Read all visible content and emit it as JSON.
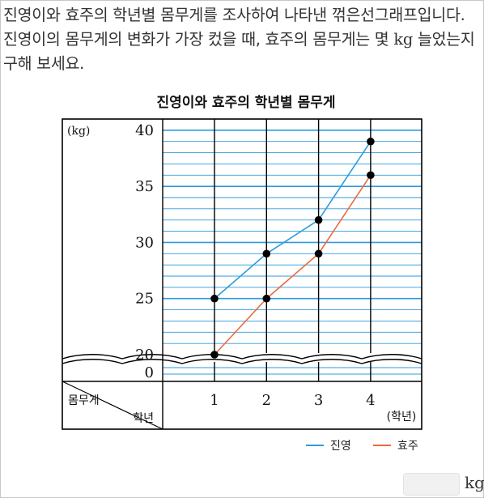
{
  "question": {
    "text_before": "진영이와 효주의 학년별 몸무게를 조사하여 나타낸 꺾은선그래프입니다. 진영이의 몸무게의 변화가 가장 컸을 때, 효주의 몸무게는 몇 ",
    "unit": "kg",
    "text_after": " 늘었는지 구해 보세요."
  },
  "answer": {
    "unit": "kg"
  },
  "chart_data": {
    "type": "line",
    "title": "진영이와 효주의 학년별 몸무게",
    "ylabel": "(kg)",
    "xlabel": "(학년)",
    "x": [
      1,
      2,
      3,
      4
    ],
    "x_tick_labels": [
      "1",
      "2",
      "3",
      "4"
    ],
    "y_ticks": [
      20,
      25,
      30,
      35,
      40
    ],
    "y_zero_label": "0",
    "ylim": [
      20,
      41
    ],
    "y_axis_break": true,
    "grid": true,
    "legend_position": "bottom-right",
    "header_cell": {
      "top": "몸무게",
      "bottom": "학년"
    },
    "series": [
      {
        "name": "진영",
        "values": [
          25,
          29,
          32,
          39
        ],
        "color": "#2e9bdc"
      },
      {
        "name": "효주",
        "values": [
          20,
          25,
          29,
          36
        ],
        "color": "#ee6a3c"
      }
    ],
    "colors": {
      "grid_blue": "#2e9bdc",
      "axis": "#000000"
    }
  }
}
